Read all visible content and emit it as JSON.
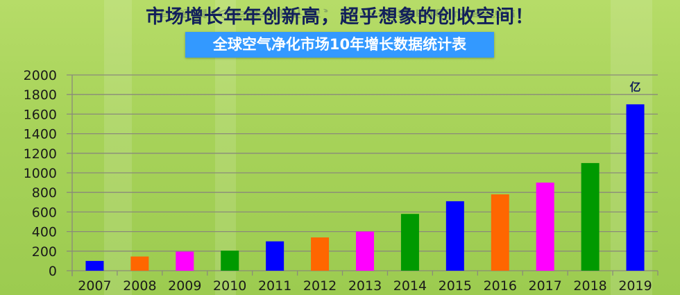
{
  "header": {
    "headline": "市场增长年年创新高，超乎想象的创收空间！",
    "subtitle": "全球空气净化市场10年增长数据统计表"
  },
  "chart_data": {
    "type": "bar",
    "title": "全球空气净化市场10年增长数据统计表",
    "unit": "亿",
    "categories": [
      "2007",
      "2008",
      "2009",
      "2010",
      "2011",
      "2012",
      "2013",
      "2014",
      "2015",
      "2016",
      "2017",
      "2018",
      "2019"
    ],
    "values": [
      100,
      145,
      195,
      205,
      300,
      340,
      400,
      580,
      710,
      780,
      900,
      1100,
      1700
    ],
    "colors": [
      "#0000ff",
      "#ff6600",
      "#ff00ff",
      "#009900",
      "#0000ff",
      "#ff6600",
      "#ff00ff",
      "#009900",
      "#0000ff",
      "#ff6600",
      "#ff00ff",
      "#009900",
      "#0000ff"
    ],
    "ylim": [
      0,
      2000
    ],
    "yticks": [
      0,
      200,
      400,
      600,
      800,
      1000,
      1200,
      1400,
      1600,
      1800,
      2000
    ],
    "grid": true,
    "legend": "none",
    "xlabel": "",
    "ylabel": ""
  }
}
